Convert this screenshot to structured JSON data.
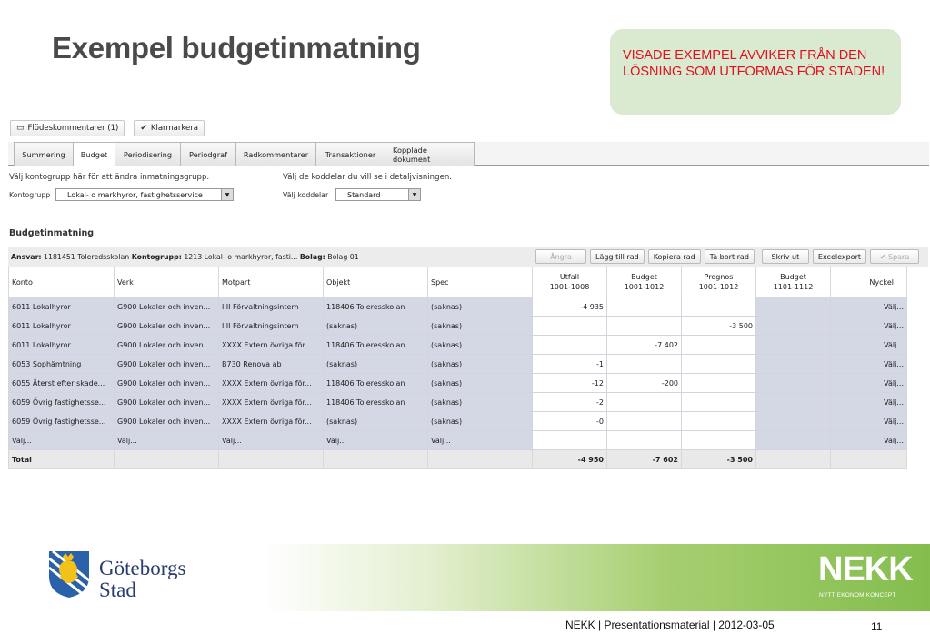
{
  "slide": {
    "title": "Exempel budgetinmatning",
    "note": "VISADE EXEMPEL AVVIKER FRÅN DEN LÖSNING SOM UTFORMAS FÖR STADEN!",
    "footer": "NEKK |  Presentationsmaterial | 2012-03-05",
    "page_number": "11"
  },
  "logos": {
    "gbg_line1": "Göteborgs",
    "gbg_line2": "Stad",
    "nekk_big": "NEKK",
    "nekk_small": "NYTT EKONOMIKONCEPT"
  },
  "toolbar": {
    "flow_comments": "Flödeskommentarer (1)",
    "mark_done": "Klarmarkera"
  },
  "tabs": [
    {
      "label": "Summering"
    },
    {
      "label": "Budget"
    },
    {
      "label": "Periodisering"
    },
    {
      "label": "Periodgraf"
    },
    {
      "label": "Radkommentarer"
    },
    {
      "label": "Transaktioner"
    },
    {
      "label": "Kopplade dokument"
    }
  ],
  "filters": {
    "help_left": "Välj kontogrupp här för att ändra inmatningsgrupp.",
    "help_right": "Välj de koddelar du vill se i detaljvisningen.",
    "kontogrupp_label": "Kontogrupp",
    "kontogrupp_value": "Lokal- o markhyror, fastighetsservice",
    "koddelar_label": "Välj koddelar",
    "koddelar_value": "Standard"
  },
  "section_title": "Budgetinmatning",
  "ansvar": {
    "ansvar_label": "Ansvar:",
    "ansvar_value": "1181451 Toleredsskolan",
    "kontogrupp_label": "Kontogrupp:",
    "kontogrupp_value": "1213 Lokal- o markhyror, fasti...",
    "bolag_label": "Bolag:",
    "bolag_value": "Bolag 01"
  },
  "actions": {
    "undo": "Ångra",
    "add_row": "Lägg till rad",
    "copy_row": "Kopiera rad",
    "delete_row": "Ta bort rad",
    "print": "Skriv ut",
    "excel": "Excelexport",
    "save": "Spara"
  },
  "table": {
    "headers": [
      {
        "l1": "Konto",
        "l2": ""
      },
      {
        "l1": "Verk",
        "l2": ""
      },
      {
        "l1": "Motpart",
        "l2": ""
      },
      {
        "l1": "Objekt",
        "l2": ""
      },
      {
        "l1": "Spec",
        "l2": ""
      },
      {
        "l1": "Utfall",
        "l2": "1001-1008"
      },
      {
        "l1": "Budget",
        "l2": "1001-1012"
      },
      {
        "l1": "Prognos",
        "l2": "1001-1012"
      },
      {
        "l1": "Budget",
        "l2": "1101-1112"
      },
      {
        "l1": "Nyckel",
        "l2": ""
      }
    ],
    "rows": [
      [
        "6011 Lokalhyror",
        "G900 Lokaler och inven...",
        "IIII Förvaltningsintern",
        "118406 Toleresskolan",
        "(saknas)",
        "-4 935",
        "",
        "",
        "",
        "Välj..."
      ],
      [
        "6011 Lokalhyror",
        "G900 Lokaler och inven...",
        "IIII Förvaltningsintern",
        "(saknas)",
        "(saknas)",
        "",
        "",
        "-3 500",
        "",
        "Välj..."
      ],
      [
        "6011 Lokalhyror",
        "G900 Lokaler och inven...",
        "XXXX Extern övriga för...",
        "118406 Toleresskolan",
        "(saknas)",
        "",
        "-7 402",
        "",
        "",
        "Välj..."
      ],
      [
        "6053 Sophämtning",
        "G900 Lokaler och inven...",
        "B730 Renova ab",
        "(saknas)",
        "(saknas)",
        "-1",
        "",
        "",
        "",
        "Välj..."
      ],
      [
        "6055 Återst efter skade...",
        "G900 Lokaler och inven...",
        "XXXX Extern övriga för...",
        "118406 Toleresskolan",
        "(saknas)",
        "-12",
        "-200",
        "",
        "",
        "Välj..."
      ],
      [
        "6059 Övrig fastighetsse...",
        "G900 Lokaler och inven...",
        "XXXX Extern övriga för...",
        "118406 Toleresskolan",
        "(saknas)",
        "-2",
        "",
        "",
        "",
        "Välj..."
      ],
      [
        "6059 Övrig fastighetsse...",
        "G900 Lokaler och inven...",
        "XXXX Extern övriga för...",
        "(saknas)",
        "(saknas)",
        "-0",
        "",
        "",
        "",
        "Välj..."
      ],
      [
        "Välj...",
        "Välj...",
        "Välj...",
        "Välj...",
        "Välj...",
        "",
        "",
        "",
        "",
        "Välj..."
      ]
    ],
    "total": [
      "Total",
      "",
      "",
      "",
      "",
      "-4 950",
      "-7 602",
      "-3 500",
      "",
      ""
    ]
  }
}
